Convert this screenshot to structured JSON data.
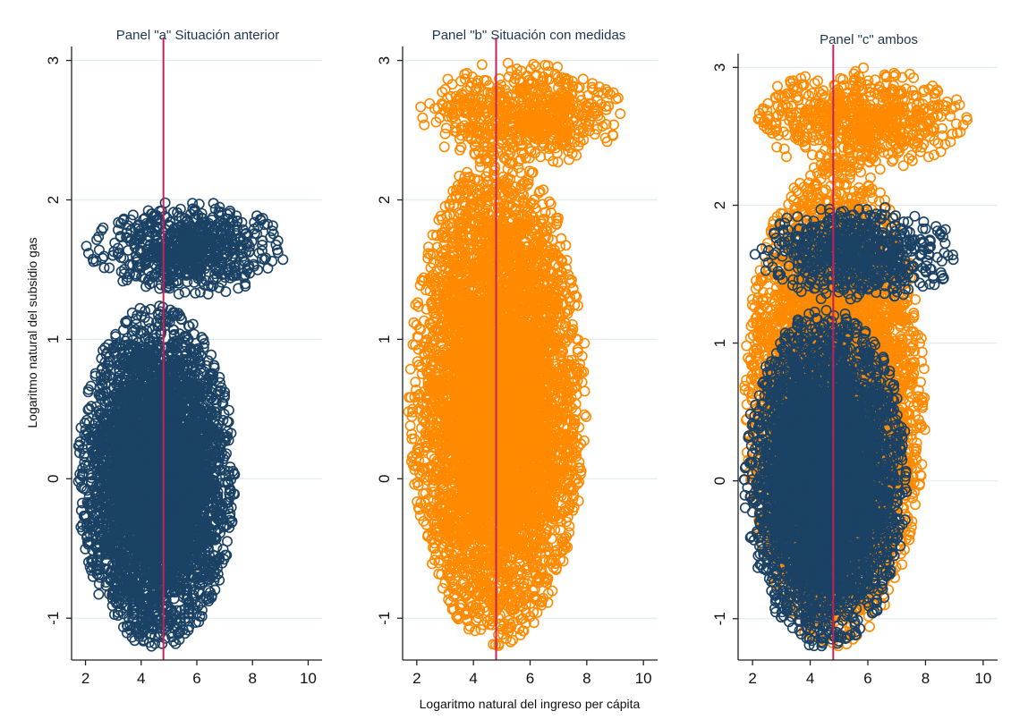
{
  "chart_data": [
    {
      "type": "scatter",
      "title": "Panel \"a\" Situación anterior",
      "ylabel": "Logaritmo natural del subsidio gas",
      "xlabel": "",
      "xlim": [
        1.5,
        10.5
      ],
      "ylim": [
        -1.3,
        3.1
      ],
      "xticks": [
        2,
        4,
        6,
        8,
        10
      ],
      "yticks": [
        -1,
        0,
        1,
        2,
        3
      ],
      "vline_x": 4.8,
      "grid": true,
      "marker": "hollow-circle",
      "series": [
        {
          "color": "#1b4264",
          "clusters": [
            {
              "x": [
                1.7,
                7.4
              ],
              "y": [
                -1.22,
                1.25
              ],
              "n": 5000,
              "approx_count": "dense"
            },
            {
              "x": [
                2.0,
                9.2
              ],
              "y": [
                1.3,
                2.0
              ],
              "n": 700,
              "approx_count": "dense"
            }
          ]
        }
      ]
    },
    {
      "type": "scatter",
      "title": "Panel \"b\" Situación con medidas",
      "xlabel": "Logaritmo natural del ingreso per cápita",
      "ylabel": "",
      "xlim": [
        1.5,
        10.5
      ],
      "ylim": [
        -1.3,
        3.1
      ],
      "xticks": [
        2,
        4,
        6,
        8,
        10
      ],
      "yticks": [
        -1,
        0,
        1,
        2,
        3
      ],
      "vline_x": 4.8,
      "grid": true,
      "marker": "hollow-circle",
      "series": [
        {
          "color": "#ff8a00",
          "clusters": [
            {
              "x": [
                1.7,
                8.0
              ],
              "y": [
                -1.2,
                2.35
              ],
              "n": 6500,
              "approx_count": "dense"
            },
            {
              "x": [
                2.0,
                9.5
              ],
              "y": [
                2.25,
                3.0
              ],
              "n": 700,
              "approx_count": "dense"
            }
          ]
        }
      ]
    },
    {
      "type": "scatter",
      "title": "Panel \"c\" ambos",
      "xlabel": "",
      "ylabel": "",
      "xlim": [
        1.5,
        10.5
      ],
      "ylim": [
        -1.3,
        3.1
      ],
      "xticks": [
        2,
        4,
        6,
        8,
        10
      ],
      "yticks": [
        -1,
        0,
        1,
        2,
        3
      ],
      "vline_x": 4.8,
      "grid": true,
      "marker": "hollow-circle",
      "series": [
        {
          "color": "#ff8a00",
          "clusters": [
            {
              "x": [
                1.7,
                8.0
              ],
              "y": [
                -1.2,
                2.35
              ],
              "n": 6500,
              "approx_count": "dense"
            },
            {
              "x": [
                2.0,
                9.5
              ],
              "y": [
                2.25,
                3.0
              ],
              "n": 700,
              "approx_count": "dense"
            }
          ]
        },
        {
          "color": "#1b4264",
          "clusters": [
            {
              "x": [
                1.7,
                7.4
              ],
              "y": [
                -1.22,
                1.25
              ],
              "n": 5000,
              "approx_count": "dense"
            },
            {
              "x": [
                2.0,
                9.2
              ],
              "y": [
                1.3,
                2.0
              ],
              "n": 700,
              "approx_count": "dense"
            }
          ]
        }
      ]
    }
  ],
  "style": {
    "vline_color": "#c8205a",
    "grid_color": "#e3ecef"
  }
}
